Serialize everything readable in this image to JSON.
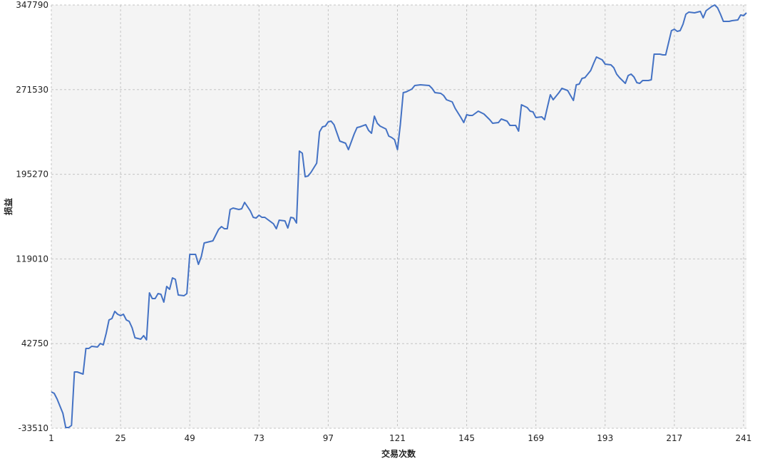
{
  "chart_data": {
    "type": "line",
    "x_label": "交易次数",
    "y_label": "损益",
    "x": [
      1,
      2,
      3,
      5,
      6,
      7,
      8,
      9,
      10,
      12,
      13,
      14,
      15,
      17,
      18,
      19,
      20,
      21,
      22,
      23,
      24,
      25,
      26,
      27,
      28,
      29,
      30,
      32,
      33,
      34,
      35,
      36,
      37,
      38,
      39,
      40,
      41,
      42,
      43,
      44,
      45,
      47,
      48,
      49,
      51,
      52,
      53,
      54,
      56,
      57,
      59,
      60,
      61,
      62,
      63,
      64,
      66,
      67,
      68,
      69,
      70,
      71,
      72,
      73,
      74,
      75,
      76,
      78,
      79,
      80,
      82,
      83,
      84,
      85,
      86,
      87,
      88,
      89,
      90,
      91,
      93,
      94,
      95,
      96,
      97,
      98,
      99,
      101,
      103,
      104,
      106,
      107,
      108,
      110,
      111,
      112,
      113,
      114,
      115,
      117,
      118,
      119,
      120,
      121,
      122,
      123,
      124,
      126,
      127,
      129,
      132,
      133,
      134,
      136,
      137,
      138,
      140,
      141,
      143,
      144,
      145,
      146,
      147,
      149,
      150,
      151,
      153,
      154,
      156,
      157,
      159,
      160,
      162,
      163,
      164,
      166,
      167,
      168,
      169,
      171,
      172,
      173,
      174,
      175,
      177,
      178,
      180,
      181,
      182,
      183,
      184,
      185,
      186,
      188,
      189,
      190,
      192,
      193,
      195,
      196,
      197,
      198,
      200,
      201,
      202,
      203,
      204,
      205,
      206,
      208,
      209,
      210,
      212,
      213,
      214,
      216,
      217,
      218,
      219,
      220,
      221,
      222,
      224,
      225,
      226,
      227,
      228,
      230,
      231,
      232,
      233,
      234,
      236,
      237,
      239,
      240,
      241,
      242
    ],
    "series": [
      {
        "name": "损益",
        "color": "#4472c4",
        "values": [
          -760,
          -2050,
          -7180,
          -20020,
          -32860,
          -32860,
          -30930,
          17210,
          17210,
          15290,
          38390,
          38390,
          40320,
          39680,
          42890,
          41600,
          51870,
          64070,
          65350,
          71770,
          69200,
          67920,
          69200,
          64070,
          62790,
          57010,
          48020,
          46740,
          49950,
          46100,
          88460,
          83330,
          83330,
          87820,
          87180,
          80120,
          94240,
          91670,
          101940,
          100660,
          86540,
          85900,
          87820,
          123130,
          123130,
          114140,
          121200,
          133400,
          134680,
          135320,
          145590,
          148160,
          146230,
          146230,
          163570,
          164850,
          163570,
          164210,
          169980,
          166130,
          162280,
          156500,
          155860,
          158430,
          156500,
          156500,
          154580,
          150730,
          146230,
          153940,
          153290,
          146880,
          156500,
          155860,
          151370,
          216200,
          214280,
          193090,
          193730,
          196940,
          205290,
          233530,
          238030,
          238670,
          242520,
          243160,
          239950,
          225190,
          223260,
          217480,
          231610,
          237380,
          238030,
          239950,
          234820,
          232250,
          247650,
          241230,
          238670,
          236100,
          229680,
          228400,
          226470,
          217480,
          239950,
          268840,
          269480,
          272050,
          275260,
          275900,
          275260,
          272690,
          268840,
          268190,
          266270,
          262420,
          260490,
          254710,
          246370,
          241880,
          248940,
          248300,
          248300,
          252150,
          250860,
          249580,
          244440,
          241230,
          241880,
          245090,
          243160,
          239310,
          239310,
          234170,
          257920,
          255360,
          252150,
          251500,
          246370,
          247010,
          244440,
          256000,
          266910,
          262420,
          268840,
          272690,
          270760,
          266270,
          261780,
          275900,
          276540,
          281670,
          282320,
          288740,
          295150,
          300930,
          298360,
          294510,
          293870,
          291300,
          285530,
          282320,
          277180,
          284240,
          285530,
          282960,
          277820,
          277180,
          279750,
          279750,
          280390,
          303500,
          303500,
          302860,
          302860,
          324680,
          325970,
          324040,
          324680,
          330460,
          339450,
          341370,
          340730,
          341370,
          342010,
          336240,
          342650,
          346510,
          347790,
          345220,
          339450,
          333030,
          333030,
          333670,
          334310,
          338800,
          338160,
          340730
        ]
      }
    ],
    "xlim": [
      1,
      242
    ],
    "xticks": [
      1,
      25,
      49,
      73,
      97,
      121,
      145,
      169,
      193,
      217,
      241
    ],
    "ylim": [
      -33510,
      347790
    ],
    "yticks": [
      -33510,
      42750,
      119010,
      195270,
      271530,
      347790
    ],
    "grid": true
  }
}
